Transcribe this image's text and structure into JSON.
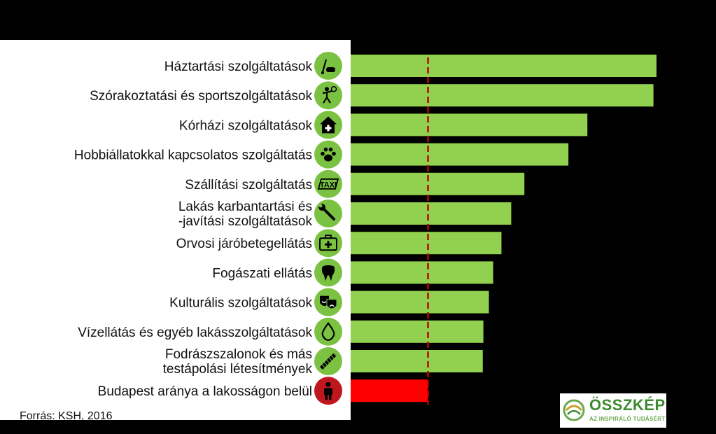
{
  "chart_data": {
    "type": "bar",
    "orientation": "horizontal",
    "categories": [
      "Háztartási szolgáltatások",
      "Szórakoztatási és sportszolgáltatások",
      "Kórházi szolgáltatások",
      "Hobbiállatokkal kapcsolatos szolgáltatás",
      "Szállítási szolgáltatás",
      "Lakás karbantartási és -javítási szolgáltatások",
      "Orvosi járóbetegellátás",
      "Fogászati ellátás",
      "Kulturális szolgáltatások",
      "Vízellátás és egyéb lakásszolgáltatások",
      "Fodrászszalonok és más testápolási létesítmények",
      "Budapest aránya a lakosságon belül"
    ],
    "values": [
      100,
      99,
      77.4,
      71.2,
      56.8,
      52.5,
      49.3,
      46.6,
      45.2,
      43.4,
      43.2,
      25.3
    ],
    "icons": [
      "vacuum-cleaner-icon",
      "sport-player-icon",
      "hospital-icon",
      "paw-icon",
      "taxi-icon",
      "wrench-icon",
      "first-aid-kit-icon",
      "tooth-icon",
      "theater-masks-icon",
      "water-drop-icon",
      "comb-icon",
      "person-icon"
    ],
    "reference_value": 25.3,
    "xlim": [
      0,
      100
    ],
    "colors": {
      "bar": "#92d050",
      "highlight": "#ff0000",
      "reference_line": "#c00000",
      "icon_circle": "#7cc242",
      "highlight_icon_circle": "#c0171f"
    }
  },
  "source": "Forrás: KSH, 2016",
  "logo": {
    "main": "ÖSSZKÉP",
    "sub": "AZ INSPIRÁLÓ TUDÁSÉRT"
  }
}
